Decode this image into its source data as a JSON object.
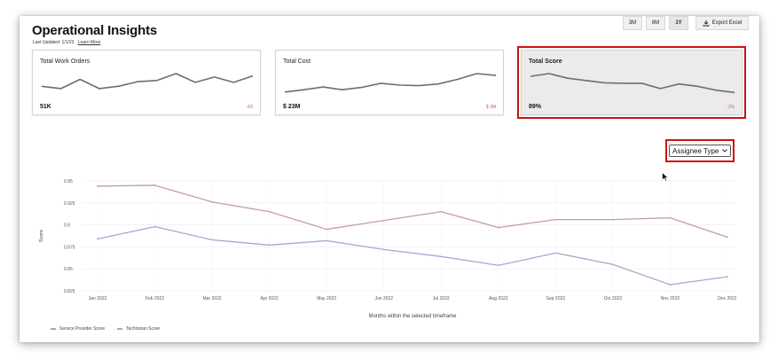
{
  "header": {
    "title": "Operational Insights",
    "last_updated_label": "Last Updated: 1/1/23",
    "learn_more": "Learn More"
  },
  "toolbar": {
    "ranges": [
      {
        "label": "3M",
        "active": false
      },
      {
        "label": "6M",
        "active": false
      },
      {
        "label": "1Y",
        "active": true
      }
    ],
    "export_label": "Export Excel",
    "export_icon": "download-icon"
  },
  "cards": [
    {
      "title": "Total Work Orders",
      "value": "51K",
      "delta": "-63",
      "spark": [
        0.45,
        0.35,
        0.75,
        0.35,
        0.45,
        0.65,
        0.7,
        1.0,
        0.62,
        0.85,
        0.62,
        0.9
      ]
    },
    {
      "title": "Total Cost",
      "value": "$ 23M",
      "delta": "$ 3M",
      "spark": [
        0.2,
        0.3,
        0.42,
        0.3,
        0.4,
        0.58,
        0.5,
        0.48,
        0.55,
        0.75,
        1.0,
        0.92
      ]
    },
    {
      "title": "Total Score",
      "value": "89%",
      "delta": "-1%",
      "selected": true,
      "spark": [
        0.88,
        1.0,
        0.8,
        0.7,
        0.6,
        0.58,
        0.58,
        0.35,
        0.55,
        0.45,
        0.28,
        0.18
      ]
    }
  ],
  "filter": {
    "selected": "Assignee Type",
    "colors": {
      "highlight": "#cc1111"
    }
  },
  "chart_data": {
    "type": "line",
    "categories": [
      "Jan 2022",
      "Feb 2022",
      "Mar 2022",
      "Apr 2022",
      "May 2022",
      "Jun 2022",
      "Jul 2022",
      "Aug 2022",
      "Sep 2022",
      "Oct 2022",
      "Nov 2022",
      "Dec 2022"
    ],
    "series": [
      {
        "name": "Service Provider Score",
        "color": "#c49ab2",
        "values": [
          0.944,
          0.945,
          0.926,
          0.915,
          0.895,
          0.905,
          0.915,
          0.897,
          0.906,
          0.906,
          0.908,
          0.886
        ]
      },
      {
        "name": "Technician Score",
        "color": "#9eadcd",
        "values": [
          0.884,
          0.898,
          0.883,
          0.877,
          0.882,
          0.872,
          0.864,
          0.854,
          0.868,
          0.855,
          0.832,
          0.841
        ]
      }
    ],
    "xlabel": "Months within the selected timeframe",
    "ylabel": "Score",
    "yticks": [
      "0.95",
      "0.925",
      "0.9",
      "0.875",
      "0.85",
      "0.825"
    ],
    "ylim": [
      0.825,
      0.95
    ],
    "grid": true,
    "legend": "bottom-left"
  }
}
